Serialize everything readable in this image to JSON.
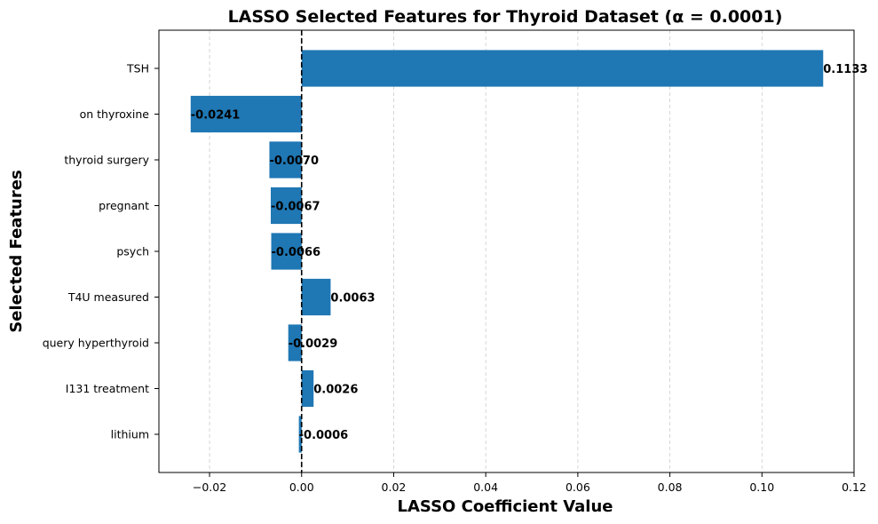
{
  "chart_data": {
    "type": "bar",
    "orientation": "horizontal",
    "title": "LASSO Selected Features for Thyroid Dataset (α = 0.0001)",
    "xlabel": "LASSO Coefficient Value",
    "ylabel": "Selected Features",
    "xlim": [
      -0.031,
      0.12
    ],
    "xticks": [
      -0.02,
      0.0,
      0.02,
      0.04,
      0.06,
      0.08,
      0.1,
      0.12
    ],
    "xtick_labels": [
      "−0.02",
      "0.00",
      "0.02",
      "0.04",
      "0.06",
      "0.08",
      "0.10",
      "0.12"
    ],
    "grid": "x-dashed",
    "zero_line": "dashed",
    "bar_color": "#1f77b4",
    "categories": [
      "TSH",
      "on thyroxine",
      "thyroid surgery",
      "pregnant",
      "psych",
      "T4U measured",
      "query hyperthyroid",
      "I131 treatment",
      "lithium"
    ],
    "values": [
      0.1133,
      -0.0241,
      -0.007,
      -0.0067,
      -0.0066,
      0.0063,
      -0.0029,
      0.0026,
      -0.0006
    ],
    "value_labels": [
      "0.1133",
      "-0.0241",
      "-0.0070",
      "-0.0067",
      "-0.0066",
      "0.0063",
      "-0.0029",
      "0.0026",
      "-0.0006"
    ]
  }
}
